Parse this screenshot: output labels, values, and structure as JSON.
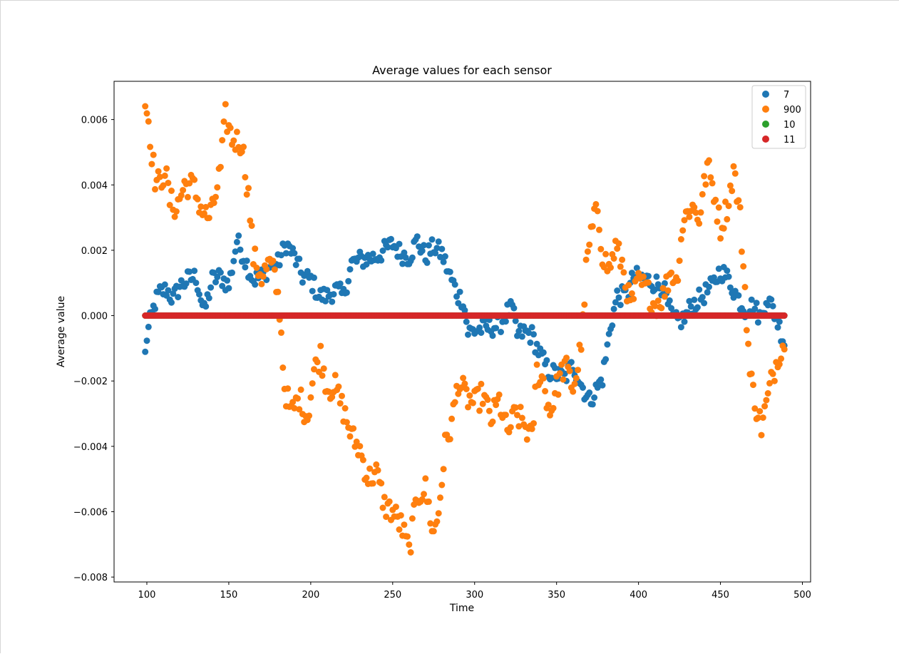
{
  "chart_data": {
    "type": "scatter",
    "title": "Average values for each sensor",
    "xlabel": "Time",
    "ylabel": "Average value",
    "xlim": [
      80,
      505
    ],
    "ylim": [
      -0.00815,
      0.00717
    ],
    "xticks": [
      100,
      150,
      200,
      250,
      300,
      350,
      400,
      450,
      500
    ],
    "xtick_labels": [
      "100",
      "150",
      "200",
      "250",
      "300",
      "350",
      "400",
      "450",
      "500"
    ],
    "yticks": [
      -0.008,
      -0.006,
      -0.004,
      -0.002,
      0.0,
      0.002,
      0.004,
      0.006
    ],
    "ytick_labels": [
      "−0.008",
      "−0.006",
      "−0.004",
      "−0.002",
      "0.000",
      "0.002",
      "0.004",
      "0.006"
    ],
    "grid": false,
    "legend_position": "top-right",
    "x_range": [
      99,
      489
    ],
    "series": [
      {
        "name": "7",
        "color": "#1f77b4",
        "anchors": [
          [
            99,
            -0.0012
          ],
          [
            100,
            -0.00065
          ],
          [
            102,
            -0.0002
          ],
          [
            105,
            0.0004
          ],
          [
            108,
            0.0007
          ],
          [
            112,
            0.0008
          ],
          [
            116,
            0.0005
          ],
          [
            120,
            0.0009
          ],
          [
            125,
            0.0011
          ],
          [
            130,
            0.0012
          ],
          [
            135,
            0.0001
          ],
          [
            140,
            0.0011
          ],
          [
            145,
            0.0012
          ],
          [
            150,
            0.0009
          ],
          [
            155,
            0.0023
          ],
          [
            160,
            0.0017
          ],
          [
            165,
            0.0011
          ],
          [
            170,
            0.0012
          ],
          [
            175,
            0.0015
          ],
          [
            180,
            0.0016
          ],
          [
            185,
            0.0022
          ],
          [
            190,
            0.0018
          ],
          [
            195,
            0.0012
          ],
          [
            200,
            0.0011
          ],
          [
            205,
            0.0006
          ],
          [
            210,
            0.0006
          ],
          [
            215,
            0.0008
          ],
          [
            220,
            0.0006
          ],
          [
            225,
            0.0016
          ],
          [
            230,
            0.0017
          ],
          [
            240,
            0.0018
          ],
          [
            250,
            0.0022
          ],
          [
            255,
            0.0019
          ],
          [
            260,
            0.0018
          ],
          [
            265,
            0.0023
          ],
          [
            270,
            0.0018
          ],
          [
            275,
            0.0021
          ],
          [
            280,
            0.0019
          ],
          [
            285,
            0.0012
          ],
          [
            290,
            0.0006
          ],
          [
            293,
            0.0005
          ],
          [
            296,
            -0.0005
          ],
          [
            305,
            -0.0004
          ],
          [
            315,
            -0.0003
          ],
          [
            320,
            0.0001
          ],
          [
            323,
            0.0002
          ],
          [
            326,
            -0.0006
          ],
          [
            330,
            -0.0005
          ],
          [
            335,
            -0.0006
          ],
          [
            340,
            -0.0012
          ],
          [
            345,
            -0.0017
          ],
          [
            350,
            -0.0018
          ],
          [
            355,
            -0.0019
          ],
          [
            360,
            -0.0015
          ],
          [
            365,
            -0.0021
          ],
          [
            370,
            -0.0026
          ],
          [
            375,
            -0.0022
          ],
          [
            378,
            -0.0019
          ],
          [
            380,
            -0.0013
          ],
          [
            383,
            -0.0003
          ],
          [
            387,
            0.0006
          ],
          [
            393,
            0.0006
          ],
          [
            397,
            0.0012
          ],
          [
            405,
            0.0011
          ],
          [
            415,
            0.0009
          ],
          [
            418,
            0.0003
          ],
          [
            422,
            -0.0002
          ],
          [
            428,
            -0.0001
          ],
          [
            432,
            0.0003
          ],
          [
            437,
            0.0005
          ],
          [
            445,
            0.0009
          ],
          [
            450,
            0.0014
          ],
          [
            455,
            0.0011
          ],
          [
            460,
            0.0006
          ],
          [
            465,
            0.0002
          ],
          [
            470,
            0.0003
          ],
          [
            475,
            -0.0001
          ],
          [
            478,
            0.0006
          ],
          [
            482,
            0.0002
          ],
          [
            485,
            -0.0002
          ],
          [
            487,
            -0.0005
          ],
          [
            489,
            -0.0008
          ]
        ],
        "noise": 0.0003
      },
      {
        "name": "900",
        "color": "#ff7f0e",
        "anchors": [
          [
            99,
            0.0065
          ],
          [
            101,
            0.006
          ],
          [
            103,
            0.005
          ],
          [
            105,
            0.0042
          ],
          [
            108,
            0.004
          ],
          [
            111,
            0.0045
          ],
          [
            114,
            0.0035
          ],
          [
            118,
            0.0033
          ],
          [
            123,
            0.004
          ],
          [
            128,
            0.004
          ],
          [
            133,
            0.0033
          ],
          [
            137,
            0.003
          ],
          [
            140,
            0.0032
          ],
          [
            145,
            0.0045
          ],
          [
            148,
            0.0061
          ],
          [
            152,
            0.0054
          ],
          [
            158,
            0.0053
          ],
          [
            162,
            0.0037
          ],
          [
            165,
            0.0018
          ],
          [
            170,
            0.0012
          ],
          [
            175,
            0.0016
          ],
          [
            178,
            0.0012
          ],
          [
            181,
            0.0002
          ],
          [
            184,
            -0.0022
          ],
          [
            188,
            -0.003
          ],
          [
            193,
            -0.0025
          ],
          [
            198,
            -0.0031
          ],
          [
            202,
            -0.0017
          ],
          [
            206,
            -0.0012
          ],
          [
            210,
            -0.0022
          ],
          [
            215,
            -0.0022
          ],
          [
            220,
            -0.0029
          ],
          [
            225,
            -0.0037
          ],
          [
            230,
            -0.0041
          ],
          [
            235,
            -0.005
          ],
          [
            240,
            -0.0048
          ],
          [
            245,
            -0.0058
          ],
          [
            250,
            -0.006
          ],
          [
            255,
            -0.0064
          ],
          [
            260,
            -0.0072
          ],
          [
            265,
            -0.0055
          ],
          [
            270,
            -0.0053
          ],
          [
            275,
            -0.0067
          ],
          [
            278,
            -0.006
          ],
          [
            282,
            -0.004
          ],
          [
            286,
            -0.0033
          ],
          [
            290,
            -0.002
          ],
          [
            295,
            -0.0025
          ],
          [
            300,
            -0.0027
          ],
          [
            305,
            -0.0024
          ],
          [
            310,
            -0.0032
          ],
          [
            315,
            -0.0026
          ],
          [
            320,
            -0.0036
          ],
          [
            325,
            -0.003
          ],
          [
            330,
            -0.0033
          ],
          [
            335,
            -0.0038
          ],
          [
            338,
            -0.0017
          ],
          [
            342,
            -0.002
          ],
          [
            346,
            -0.003
          ],
          [
            350,
            -0.0022
          ],
          [
            355,
            -0.0015
          ],
          [
            360,
            -0.0022
          ],
          [
            363,
            -0.0016
          ],
          [
            366,
            -0.0003
          ],
          [
            368,
            0.0014
          ],
          [
            371,
            0.0025
          ],
          [
            375,
            0.0033
          ],
          [
            378,
            0.0019
          ],
          [
            382,
            0.0014
          ],
          [
            386,
            0.0021
          ],
          [
            390,
            0.0016
          ],
          [
            395,
            0.0003
          ],
          [
            400,
            0.001
          ],
          [
            405,
            0.0008
          ],
          [
            410,
            0.0003
          ],
          [
            415,
            0.0006
          ],
          [
            420,
            0.0014
          ],
          [
            423,
            0.001
          ],
          [
            427,
            0.0028
          ],
          [
            432,
            0.0034
          ],
          [
            437,
            0.003
          ],
          [
            442,
            0.0046
          ],
          [
            446,
            0.0038
          ],
          [
            450,
            0.0027
          ],
          [
            455,
            0.0035
          ],
          [
            458,
            0.0045
          ],
          [
            462,
            0.003
          ],
          [
            465,
            0.0008
          ],
          [
            468,
            -0.0018
          ],
          [
            472,
            -0.0028
          ],
          [
            475,
            -0.0034
          ],
          [
            479,
            -0.0025
          ],
          [
            482,
            -0.0018
          ],
          [
            486,
            -0.0011
          ],
          [
            489,
            -0.0008
          ]
        ],
        "noise": 0.0004
      },
      {
        "name": "10",
        "color": "#2ca02c",
        "constant": 0.0
      },
      {
        "name": "11",
        "color": "#d62728",
        "constant": 0.0
      }
    ]
  }
}
